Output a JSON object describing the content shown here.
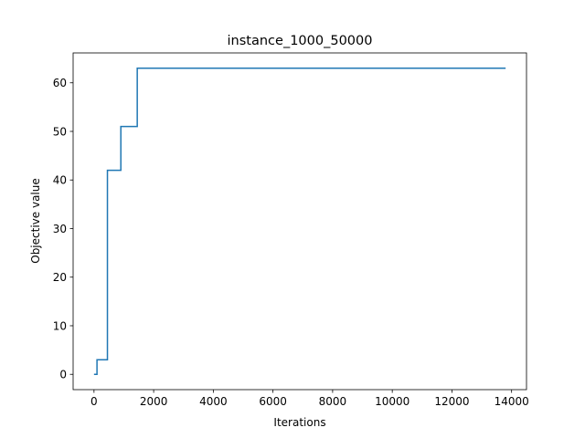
{
  "chart_data": {
    "type": "line",
    "title": "instance_1000_50000",
    "xlabel": "Iterations",
    "ylabel": "Objective value",
    "xlim": [
      -700,
      14500
    ],
    "ylim": [
      -3.15,
      66.15
    ],
    "xticks": [
      0,
      2000,
      4000,
      6000,
      8000,
      10000,
      12000,
      14000
    ],
    "xtick_labels": [
      "0",
      "2000",
      "4000",
      "6000",
      "8000",
      "10000",
      "12000",
      "14000"
    ],
    "yticks": [
      0,
      10,
      20,
      30,
      40,
      50,
      60
    ],
    "ytick_labels": [
      "0",
      "10",
      "20",
      "30",
      "40",
      "50",
      "60"
    ],
    "grid": false,
    "step": "post",
    "series": [
      {
        "color": "#1f77b4",
        "x": [
          0,
          100,
          450,
          900,
          1450,
          13800
        ],
        "y": [
          0,
          3,
          42,
          51,
          63,
          63
        ]
      }
    ]
  }
}
